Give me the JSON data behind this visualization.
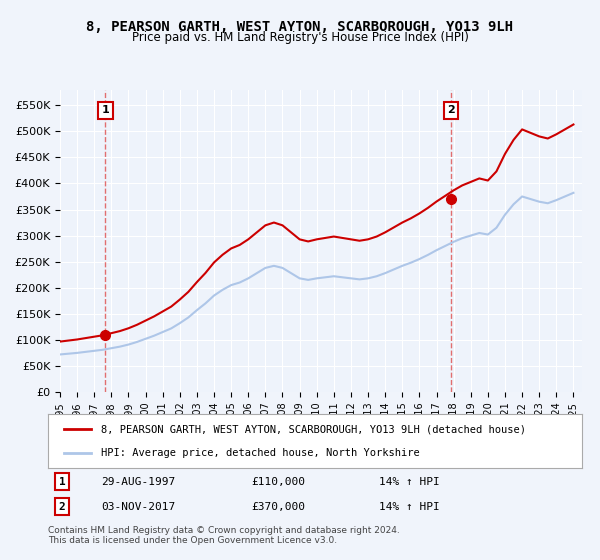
{
  "title": "8, PEARSON GARTH, WEST AYTON, SCARBOROUGH, YO13 9LH",
  "subtitle": "Price paid vs. HM Land Registry's House Price Index (HPI)",
  "ylabel_ticks": [
    "£0",
    "£50K",
    "£100K",
    "£150K",
    "£200K",
    "£250K",
    "£300K",
    "£350K",
    "£400K",
    "£450K",
    "£500K",
    "£550K"
  ],
  "ytick_values": [
    0,
    50000,
    100000,
    150000,
    200000,
    250000,
    300000,
    350000,
    400000,
    450000,
    500000,
    550000
  ],
  "ylim": [
    0,
    580000
  ],
  "xlim_start": 1995.0,
  "xlim_end": 2025.5,
  "purchase1_date": 1997.65,
  "purchase1_price": 110000,
  "purchase1_label": "1",
  "purchase2_date": 2017.84,
  "purchase2_price": 370000,
  "purchase2_label": "2",
  "hpi_line_color": "#aec6e8",
  "price_line_color": "#cc0000",
  "dashed_line_color": "#e06060",
  "background_color": "#eef3fb",
  "plot_bg_color": "#eef3fb",
  "grid_color": "#ffffff",
  "legend_box_color": "#ffffff",
  "legend_label_property": "8, PEARSON GARTH, WEST AYTON, SCARBOROUGH, YO13 9LH (detached house)",
  "legend_label_hpi": "HPI: Average price, detached house, North Yorkshire",
  "table_row1": [
    "1",
    "29-AUG-1997",
    "£110,000",
    "14% ↑ HPI"
  ],
  "table_row2": [
    "2",
    "03-NOV-2017",
    "£370,000",
    "14% ↑ HPI"
  ],
  "footnote1": "Contains HM Land Registry data © Crown copyright and database right 2024.",
  "footnote2": "This data is licensed under the Open Government Licence v3.0.",
  "xtick_years": [
    1995,
    1996,
    1997,
    1998,
    1999,
    2000,
    2001,
    2002,
    2003,
    2004,
    2005,
    2006,
    2007,
    2008,
    2009,
    2010,
    2011,
    2012,
    2013,
    2014,
    2015,
    2016,
    2017,
    2018,
    2019,
    2020,
    2021,
    2022,
    2023,
    2024,
    2025
  ]
}
